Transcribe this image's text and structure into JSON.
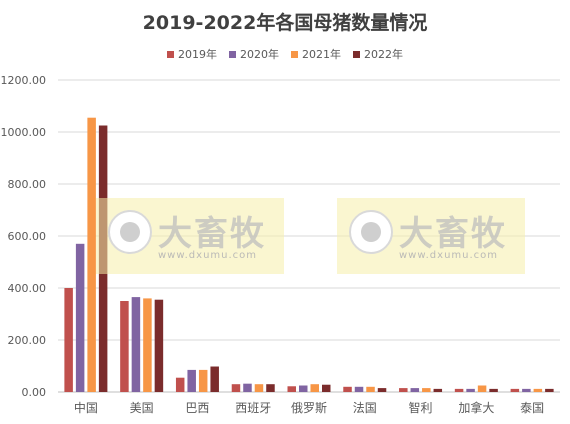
{
  "chart_data": {
    "type": "bar",
    "title": "2019-2022年各国母猪数量情况",
    "categories": [
      "中国",
      "美国",
      "巴西",
      "西班牙",
      "俄罗斯",
      "法国",
      "智利",
      "加拿大",
      "泰国"
    ],
    "series": [
      {
        "name": "2019年",
        "color": "#C0504D",
        "values": [
          400,
          350,
          55,
          30,
          22,
          20,
          15,
          12,
          12
        ]
      },
      {
        "name": "2020年",
        "color": "#8064A2",
        "values": [
          570,
          365,
          85,
          32,
          25,
          20,
          15,
          12,
          12
        ]
      },
      {
        "name": "2021年",
        "color": "#F79646",
        "values": [
          1055,
          360,
          85,
          30,
          30,
          20,
          15,
          25,
          12
        ]
      },
      {
        "name": "2022年",
        "color": "#7B2C2C",
        "values": [
          1025,
          355,
          98,
          30,
          28,
          15,
          12,
          12,
          12
        ]
      }
    ],
    "yticks": [
      "0.00",
      "200.00",
      "400.00",
      "600.00",
      "800.00",
      "1000.00",
      "1200.00"
    ],
    "ylim": [
      0,
      1200
    ],
    "grid": true,
    "legend_position": "top"
  },
  "watermark": {
    "brand": "大畜牧",
    "url": "www.dxumu.com"
  }
}
